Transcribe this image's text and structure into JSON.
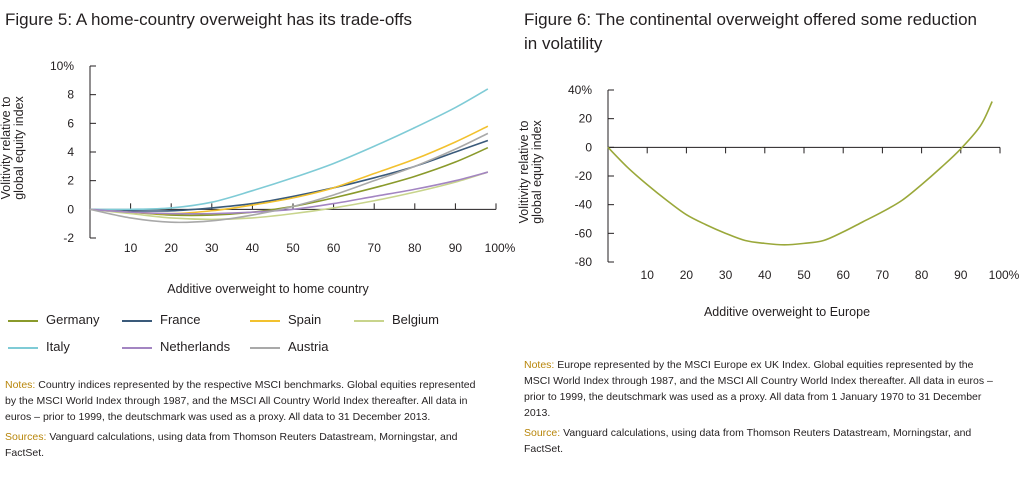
{
  "figure5": {
    "title": "Figure 5: A home-country overweight has its trade-offs",
    "notes_label": "Notes:",
    "notes_text": " Country indices represented by the respective MSCI benchmarks. Global equities represented by the MSCI World Index through 1987, and the MSCI All Country World Index thereafter. All data in euros – prior to 1999, the deutschmark was used as a proxy. All data to 31 December 2013.",
    "sources_label": "Sources:",
    "sources_text": " Vanguard calculations, using data from Thomson Reuters Datastream, Morningstar, and FactSet."
  },
  "figure6": {
    "title": "Figure 6: The continental overweight offered some reduction in volatility",
    "notes_label": "Notes:",
    "notes_text": " Europe represented by the MSCI Europe ex UK Index. Global equities represented by the MSCI World Index through 1987, and the MSCI All Country World Index thereafter. All data in euros – prior to 1999, the deutschmark was used as a proxy. All data from 1 January 1970 to 31 December 2013.",
    "source_label": "Source:",
    "source_text": " Vanguard calculations, using data from Thomson Reuters Datastream, Morningstar, and FactSet."
  },
  "colors": {
    "Germany": "#8a9a2b",
    "France": "#3a5a7a",
    "Spain": "#f2c12e",
    "Belgium": "#c8d48c",
    "Italy": "#7fcbd6",
    "Netherlands": "#a385c2",
    "Austria": "#a9a9a9",
    "Europe": "#9aa83a",
    "axis": "#231f20"
  },
  "chart_data": [
    {
      "type": "line",
      "title": "Figure 5: A home-country overweight has its trade-offs",
      "xlabel": "Additive overweight to home country",
      "ylabel": "Volitivity relative to global equity index",
      "x": [
        0,
        10,
        20,
        30,
        40,
        50,
        60,
        70,
        80,
        90,
        98
      ],
      "xticks": [
        "10",
        "20",
        "30",
        "40",
        "50",
        "60",
        "70",
        "80",
        "90",
        "100%"
      ],
      "yticks": [
        "10%",
        "8",
        "6",
        "4",
        "2",
        "0",
        "-2"
      ],
      "xlim": [
        0,
        100
      ],
      "ylim": [
        -2,
        10
      ],
      "legend_position": "bottom",
      "grid": false,
      "series": [
        {
          "name": "Germany",
          "values": [
            0,
            -0.2,
            -0.4,
            -0.4,
            -0.2,
            0.2,
            0.8,
            1.5,
            2.3,
            3.3,
            4.3
          ]
        },
        {
          "name": "France",
          "values": [
            0,
            -0.1,
            -0.1,
            0.1,
            0.4,
            0.9,
            1.5,
            2.2,
            3.0,
            4.0,
            4.8
          ]
        },
        {
          "name": "Spain",
          "values": [
            0,
            -0.2,
            -0.3,
            -0.1,
            0.3,
            0.8,
            1.5,
            2.5,
            3.5,
            4.7,
            5.8
          ]
        },
        {
          "name": "Belgium",
          "values": [
            0,
            -0.3,
            -0.6,
            -0.7,
            -0.6,
            -0.3,
            0.1,
            0.6,
            1.2,
            1.9,
            2.6
          ]
        },
        {
          "name": "Italy",
          "values": [
            0,
            0,
            0.1,
            0.5,
            1.3,
            2.2,
            3.2,
            4.4,
            5.7,
            7.1,
            8.4
          ]
        },
        {
          "name": "Netherlands",
          "values": [
            0,
            -0.2,
            -0.3,
            -0.3,
            -0.2,
            0,
            0.4,
            0.9,
            1.4,
            2.0,
            2.6
          ]
        },
        {
          "name": "Austria",
          "values": [
            0,
            -0.6,
            -0.9,
            -0.8,
            -0.4,
            0.2,
            1.0,
            2.0,
            3.0,
            4.2,
            5.3
          ]
        }
      ]
    },
    {
      "type": "line",
      "title": "Figure 6: The continental overweight offered some reduction in volatility",
      "xlabel": "Additive overweight to Europe",
      "ylabel": "Volitivity relative to global equity index",
      "x": [
        0,
        5,
        10,
        15,
        20,
        25,
        30,
        35,
        40,
        45,
        50,
        55,
        60,
        65,
        70,
        75,
        80,
        85,
        90,
        95,
        98
      ],
      "xticks": [
        "10",
        "20",
        "30",
        "40",
        "50",
        "60",
        "70",
        "80",
        "90",
        "100%"
      ],
      "yticks": [
        "40%",
        "20",
        "0",
        "-20",
        "-40",
        "-60",
        "-80"
      ],
      "xlim": [
        0,
        100
      ],
      "ylim": [
        -80,
        40
      ],
      "grid": false,
      "series": [
        {
          "name": "Europe",
          "values": [
            0,
            -14,
            -26,
            -37,
            -47,
            -54,
            -60,
            -65,
            -67,
            -68,
            -67,
            -65,
            -59,
            -52,
            -45,
            -37,
            -26,
            -14,
            -1,
            15,
            32
          ]
        }
      ]
    }
  ]
}
